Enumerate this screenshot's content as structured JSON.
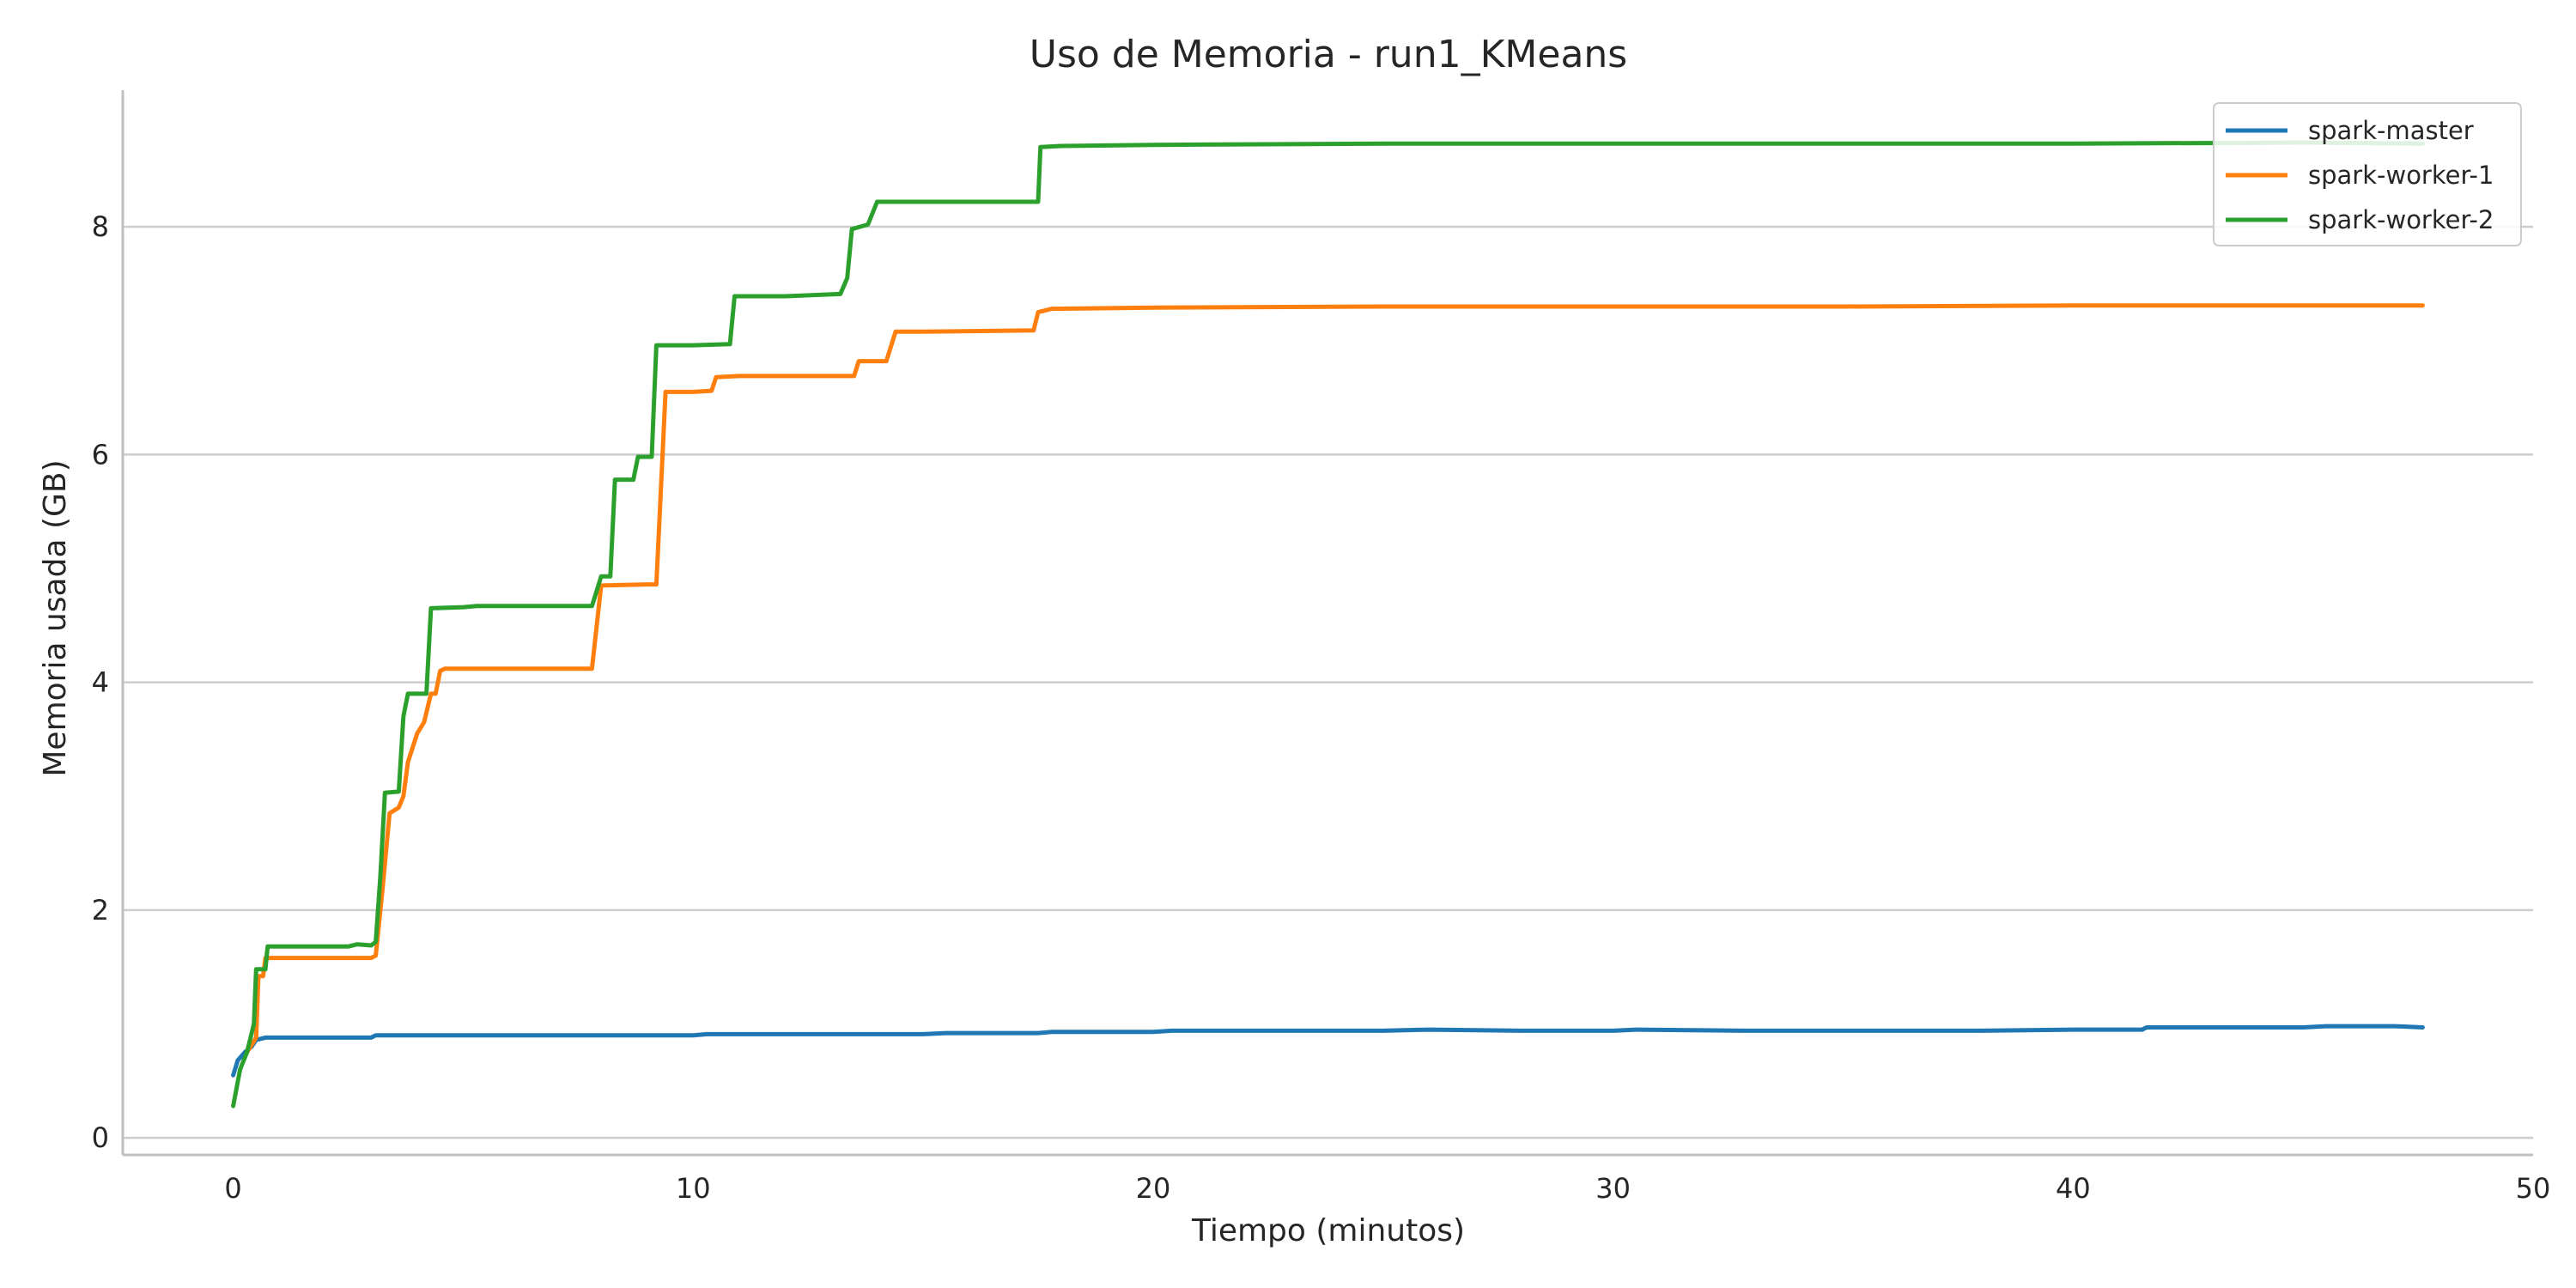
{
  "chart_data": {
    "type": "line",
    "title": "Uso de Memoria - run1_KMeans",
    "xlabel": "Tiempo (minutos)",
    "ylabel": "Memoria usada (GB)",
    "xlim": [
      -2.4,
      50
    ],
    "ylim": [
      -0.15,
      9.2
    ],
    "xticks": [
      0,
      10,
      20,
      30,
      40,
      50
    ],
    "yticks": [
      0,
      2,
      4,
      6,
      8
    ],
    "grid": "y",
    "legend_position": "top-right",
    "series": [
      {
        "name": "spark-master",
        "color": "#1f77b4",
        "points": [
          [
            0,
            0.55
          ],
          [
            0.1,
            0.68
          ],
          [
            0.25,
            0.75
          ],
          [
            0.4,
            0.8
          ],
          [
            0.5,
            0.86
          ],
          [
            0.7,
            0.88
          ],
          [
            1.5,
            0.88
          ],
          [
            3.0,
            0.88
          ],
          [
            3.1,
            0.9
          ],
          [
            5,
            0.9
          ],
          [
            8,
            0.9
          ],
          [
            10,
            0.9
          ],
          [
            10.3,
            0.91
          ],
          [
            12,
            0.91
          ],
          [
            15,
            0.91
          ],
          [
            15.5,
            0.92
          ],
          [
            17.5,
            0.92
          ],
          [
            17.8,
            0.93
          ],
          [
            20,
            0.93
          ],
          [
            20.4,
            0.94
          ],
          [
            22,
            0.94
          ],
          [
            25,
            0.94
          ],
          [
            26,
            0.95
          ],
          [
            28,
            0.94
          ],
          [
            30,
            0.94
          ],
          [
            30.5,
            0.95
          ],
          [
            33,
            0.94
          ],
          [
            35,
            0.94
          ],
          [
            38,
            0.94
          ],
          [
            40,
            0.95
          ],
          [
            41.5,
            0.95
          ],
          [
            41.6,
            0.97
          ],
          [
            43,
            0.97
          ],
          [
            45,
            0.97
          ],
          [
            45.5,
            0.98
          ],
          [
            47,
            0.98
          ],
          [
            47.6,
            0.97
          ]
        ]
      },
      {
        "name": "spark-worker-1",
        "color": "#ff7f0e",
        "points": [
          [
            0.3,
            0.75
          ],
          [
            0.5,
            0.88
          ],
          [
            0.55,
            1.42
          ],
          [
            0.65,
            1.42
          ],
          [
            0.7,
            1.58
          ],
          [
            1.0,
            1.58
          ],
          [
            3.0,
            1.58
          ],
          [
            3.1,
            1.6
          ],
          [
            3.25,
            2.2
          ],
          [
            3.4,
            2.85
          ],
          [
            3.6,
            2.9
          ],
          [
            3.7,
            3.0
          ],
          [
            3.8,
            3.3
          ],
          [
            4.0,
            3.55
          ],
          [
            4.15,
            3.65
          ],
          [
            4.3,
            3.9
          ],
          [
            4.4,
            3.9
          ],
          [
            4.5,
            4.1
          ],
          [
            4.6,
            4.12
          ],
          [
            6,
            4.12
          ],
          [
            7.8,
            4.12
          ],
          [
            8.0,
            4.85
          ],
          [
            9.0,
            4.86
          ],
          [
            9.2,
            4.86
          ],
          [
            9.4,
            6.55
          ],
          [
            10,
            6.55
          ],
          [
            10.4,
            6.56
          ],
          [
            10.5,
            6.68
          ],
          [
            11,
            6.69
          ],
          [
            13.5,
            6.69
          ],
          [
            13.6,
            6.82
          ],
          [
            14.2,
            6.82
          ],
          [
            14.4,
            7.08
          ],
          [
            15,
            7.08
          ],
          [
            17.4,
            7.09
          ],
          [
            17.5,
            7.25
          ],
          [
            17.8,
            7.28
          ],
          [
            20,
            7.29
          ],
          [
            25,
            7.3
          ],
          [
            30,
            7.3
          ],
          [
            35,
            7.3
          ],
          [
            40,
            7.31
          ],
          [
            45,
            7.31
          ],
          [
            47.6,
            7.31
          ]
        ]
      },
      {
        "name": "spark-worker-2",
        "color": "#2ca02c",
        "points": [
          [
            0,
            0.28
          ],
          [
            0.15,
            0.6
          ],
          [
            0.3,
            0.75
          ],
          [
            0.45,
            1.0
          ],
          [
            0.5,
            1.48
          ],
          [
            0.7,
            1.48
          ],
          [
            0.75,
            1.68
          ],
          [
            1,
            1.68
          ],
          [
            2.5,
            1.68
          ],
          [
            2.7,
            1.7
          ],
          [
            3.0,
            1.69
          ],
          [
            3.1,
            1.72
          ],
          [
            3.2,
            2.3
          ],
          [
            3.3,
            3.03
          ],
          [
            3.6,
            3.04
          ],
          [
            3.7,
            3.7
          ],
          [
            3.8,
            3.9
          ],
          [
            4.2,
            3.9
          ],
          [
            4.3,
            4.65
          ],
          [
            5.0,
            4.66
          ],
          [
            5.3,
            4.67
          ],
          [
            6,
            4.67
          ],
          [
            7.8,
            4.67
          ],
          [
            7.9,
            4.8
          ],
          [
            8.0,
            4.93
          ],
          [
            8.2,
            4.93
          ],
          [
            8.3,
            5.78
          ],
          [
            8.7,
            5.78
          ],
          [
            8.8,
            5.98
          ],
          [
            9.1,
            5.98
          ],
          [
            9.2,
            6.96
          ],
          [
            10,
            6.96
          ],
          [
            10.8,
            6.97
          ],
          [
            10.9,
            7.39
          ],
          [
            12,
            7.39
          ],
          [
            13.2,
            7.41
          ],
          [
            13.35,
            7.55
          ],
          [
            13.45,
            7.98
          ],
          [
            13.8,
            8.02
          ],
          [
            14.0,
            8.22
          ],
          [
            15,
            8.22
          ],
          [
            17.5,
            8.22
          ],
          [
            17.55,
            8.7
          ],
          [
            18,
            8.71
          ],
          [
            20,
            8.72
          ],
          [
            25,
            8.73
          ],
          [
            30,
            8.73
          ],
          [
            35,
            8.73
          ],
          [
            40,
            8.73
          ],
          [
            45,
            8.74
          ],
          [
            47.6,
            8.73
          ]
        ]
      }
    ]
  }
}
